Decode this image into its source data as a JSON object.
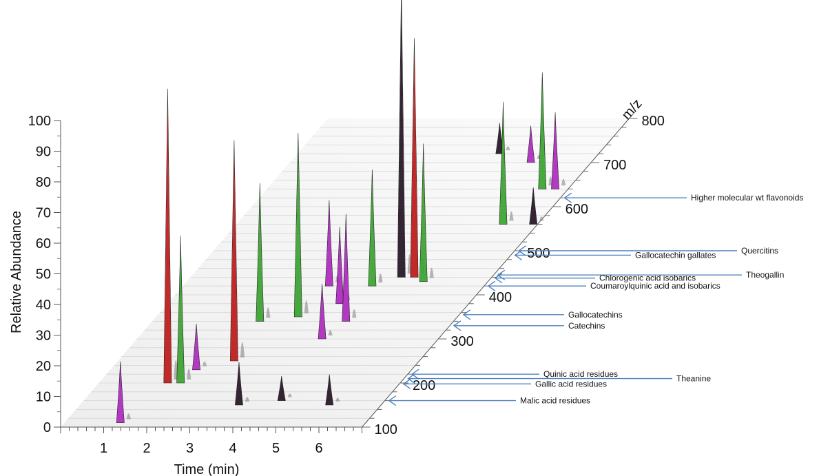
{
  "chart_data": {
    "type": "area",
    "style": "3d-stacked-chromatogram",
    "title": "",
    "xlabel": "Time (min)",
    "ylabel": "Relative Abundance",
    "zlabel": "m/z",
    "x_ticks": [
      "1",
      "2",
      "3",
      "4",
      "5",
      "6"
    ],
    "y_ticks": [
      "0",
      "10",
      "20",
      "30",
      "40",
      "50",
      "60",
      "70",
      "80",
      "90",
      "100"
    ],
    "z_ticks": [
      "100",
      "200",
      "300",
      "400",
      "500",
      "600",
      "700",
      "800"
    ],
    "xlim": [
      0,
      7
    ],
    "ylim": [
      0,
      100
    ],
    "zlim": [
      100,
      800
    ],
    "colors": {
      "red": "#c0201f",
      "green": "#3fa535",
      "magenta": "#b030c0",
      "dark": "#2a1a2a",
      "grey": "#888888",
      "arrow": "#4f81bd"
    },
    "peaks": [
      {
        "t": 1.6,
        "mz": 200,
        "h": 96,
        "color": "red"
      },
      {
        "t": 2.7,
        "mz": 250,
        "h": 72,
        "color": "red"
      },
      {
        "t": 4.9,
        "mz": 440,
        "h": 95,
        "color": "dark"
      },
      {
        "t": 5.2,
        "mz": 440,
        "h": 78,
        "color": "red"
      },
      {
        "t": 1.3,
        "mz": 110,
        "h": 20,
        "color": "magenta"
      },
      {
        "t": 2.0,
        "mz": 230,
        "h": 15,
        "color": "magenta"
      },
      {
        "t": 1.9,
        "mz": 200,
        "h": 48,
        "color": "green"
      },
      {
        "t": 2.5,
        "mz": 340,
        "h": 45,
        "color": "green"
      },
      {
        "t": 3.3,
        "mz": 350,
        "h": 60,
        "color": "green"
      },
      {
        "t": 3.4,
        "mz": 420,
        "h": 28,
        "color": "magenta"
      },
      {
        "t": 4.0,
        "mz": 380,
        "h": 25,
        "color": "magenta"
      },
      {
        "t": 4.3,
        "mz": 300,
        "h": 18,
        "color": "magenta"
      },
      {
        "t": 4.5,
        "mz": 340,
        "h": 35,
        "color": "magenta"
      },
      {
        "t": 4.4,
        "mz": 420,
        "h": 38,
        "color": "green"
      },
      {
        "t": 5.5,
        "mz": 430,
        "h": 45,
        "color": "green"
      },
      {
        "t": 6.2,
        "mz": 560,
        "h": 40,
        "color": "green"
      },
      {
        "t": 6.4,
        "mz": 640,
        "h": 38,
        "color": "green"
      },
      {
        "t": 5.6,
        "mz": 700,
        "h": 12,
        "color": "magenta"
      },
      {
        "t": 4.7,
        "mz": 720,
        "h": 10,
        "color": "dark"
      },
      {
        "t": 6.7,
        "mz": 640,
        "h": 25,
        "color": "magenta"
      },
      {
        "t": 6.9,
        "mz": 560,
        "h": 12,
        "color": "dark"
      },
      {
        "t": 3.7,
        "mz": 150,
        "h": 14,
        "color": "dark"
      },
      {
        "t": 4.6,
        "mz": 160,
        "h": 8,
        "color": "dark"
      },
      {
        "t": 5.8,
        "mz": 150,
        "h": 10,
        "color": "dark"
      }
    ],
    "annotations": [
      {
        "label": "Higher molecular wt flavonoids",
        "mz": 620
      },
      {
        "label": "Quercitins",
        "mz": 500
      },
      {
        "label": "Gallocatechin gallates",
        "mz": 490
      },
      {
        "label": "Theogallin",
        "mz": 445
      },
      {
        "label": "Chlorogenic acid isobarics",
        "mz": 438
      },
      {
        "label": "Coumaroylquinic acid and isobarics",
        "mz": 420
      },
      {
        "label": "Gallocatechins",
        "mz": 355
      },
      {
        "label": "Catechins",
        "mz": 330
      },
      {
        "label": "Quinic acid residues",
        "mz": 220
      },
      {
        "label": "Theanine",
        "mz": 210
      },
      {
        "label": "Gallic acid residues",
        "mz": 198
      },
      {
        "label": "Malic acid residues",
        "mz": 160
      }
    ]
  }
}
